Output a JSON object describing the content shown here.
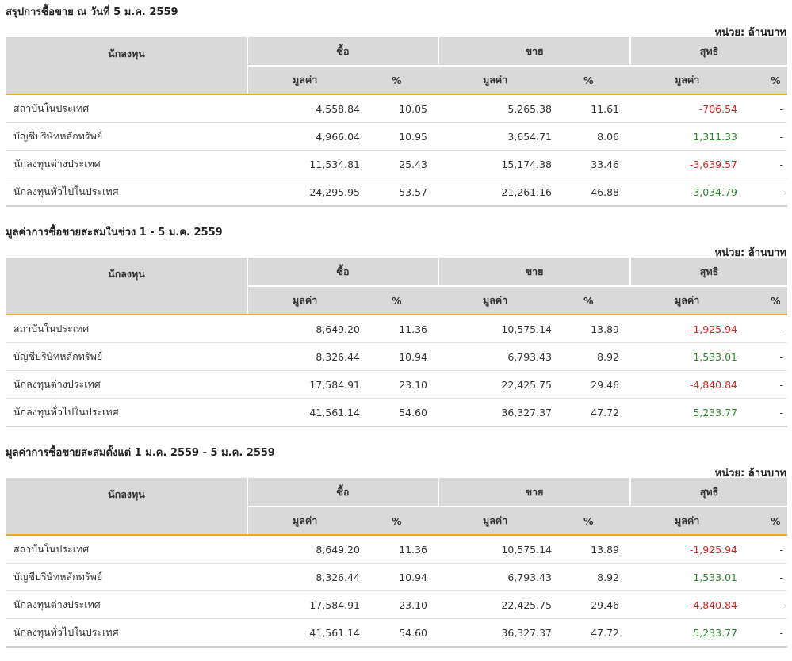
{
  "colors": {
    "header_bg": "#d9d9d9",
    "accent": "#f5a623",
    "negative": "#e02424",
    "positive": "#2a8a2a"
  },
  "headers": {
    "investor": "นักลงทุน",
    "buy": "ซื้อ",
    "sell": "ขาย",
    "net": "สุทธิ",
    "value": "มูลค่า",
    "pct": "%"
  },
  "sections": [
    {
      "title": "สรุปการซื้อขาย ณ วันที่ 5 ม.ค. 2559",
      "unit": "หน่วย: ล้านบาท",
      "rows": [
        {
          "investor": "สถาบันในประเทศ",
          "buy_value": "4,558.84",
          "buy_pct": "10.05",
          "sell_value": "5,265.38",
          "sell_pct": "11.61",
          "net_value": "-706.54",
          "net_pct": "-"
        },
        {
          "investor": "บัญชีบริษัทหลักทรัพย์",
          "buy_value": "4,966.04",
          "buy_pct": "10.95",
          "sell_value": "3,654.71",
          "sell_pct": "8.06",
          "net_value": "1,311.33",
          "net_pct": "-"
        },
        {
          "investor": "นักลงทุนต่างประเทศ",
          "buy_value": "11,534.81",
          "buy_pct": "25.43",
          "sell_value": "15,174.38",
          "sell_pct": "33.46",
          "net_value": "-3,639.57",
          "net_pct": "-"
        },
        {
          "investor": "นักลงทุนทั่วไปในประเทศ",
          "buy_value": "24,295.95",
          "buy_pct": "53.57",
          "sell_value": "21,261.16",
          "sell_pct": "46.88",
          "net_value": "3,034.79",
          "net_pct": "-"
        }
      ]
    },
    {
      "title": "มูลค่าการซื้อขายสะสมในช่วง 1 - 5 ม.ค. 2559",
      "unit": "หน่วย: ล้านบาท",
      "rows": [
        {
          "investor": "สถาบันในประเทศ",
          "buy_value": "8,649.20",
          "buy_pct": "11.36",
          "sell_value": "10,575.14",
          "sell_pct": "13.89",
          "net_value": "-1,925.94",
          "net_pct": "-"
        },
        {
          "investor": "บัญชีบริษัทหลักทรัพย์",
          "buy_value": "8,326.44",
          "buy_pct": "10.94",
          "sell_value": "6,793.43",
          "sell_pct": "8.92",
          "net_value": "1,533.01",
          "net_pct": "-"
        },
        {
          "investor": "นักลงทุนต่างประเทศ",
          "buy_value": "17,584.91",
          "buy_pct": "23.10",
          "sell_value": "22,425.75",
          "sell_pct": "29.46",
          "net_value": "-4,840.84",
          "net_pct": "-"
        },
        {
          "investor": "นักลงทุนทั่วไปในประเทศ",
          "buy_value": "41,561.14",
          "buy_pct": "54.60",
          "sell_value": "36,327.37",
          "sell_pct": "47.72",
          "net_value": "5,233.77",
          "net_pct": "-"
        }
      ]
    },
    {
      "title": "มูลค่าการซื้อขายสะสมตั้งแต่ 1 ม.ค. 2559 - 5 ม.ค. 2559",
      "unit": "หน่วย: ล้านบาท",
      "rows": [
        {
          "investor": "สถาบันในประเทศ",
          "buy_value": "8,649.20",
          "buy_pct": "11.36",
          "sell_value": "10,575.14",
          "sell_pct": "13.89",
          "net_value": "-1,925.94",
          "net_pct": "-"
        },
        {
          "investor": "บัญชีบริษัทหลักทรัพย์",
          "buy_value": "8,326.44",
          "buy_pct": "10.94",
          "sell_value": "6,793.43",
          "sell_pct": "8.92",
          "net_value": "1,533.01",
          "net_pct": "-"
        },
        {
          "investor": "นักลงทุนต่างประเทศ",
          "buy_value": "17,584.91",
          "buy_pct": "23.10",
          "sell_value": "22,425.75",
          "sell_pct": "29.46",
          "net_value": "-4,840.84",
          "net_pct": "-"
        },
        {
          "investor": "นักลงทุนทั่วไปในประเทศ",
          "buy_value": "41,561.14",
          "buy_pct": "54.60",
          "sell_value": "36,327.37",
          "sell_pct": "47.72",
          "net_value": "5,233.77",
          "net_pct": "-"
        }
      ]
    }
  ]
}
